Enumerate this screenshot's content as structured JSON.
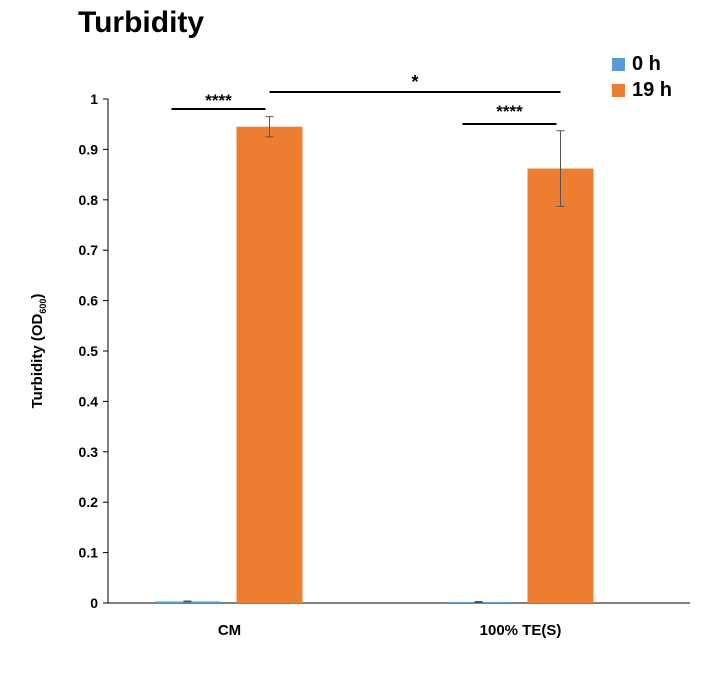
{
  "chart_data": {
    "type": "bar",
    "title": "Turbidity",
    "xlabel": "",
    "ylabel": "Turbidity (OD",
    "ylabel_subscript": "600",
    "ylabel_close": ")",
    "categories": [
      "CM",
      "100%  TE(S)"
    ],
    "series": [
      {
        "name": "0 h",
        "color": "#5B9BD5",
        "values": [
          0.003,
          0.002
        ],
        "errors": [
          0.001,
          0.001
        ]
      },
      {
        "name": "19 h",
        "color": "#ED7D31",
        "values": [
          0.945,
          0.862
        ],
        "errors": [
          0.02,
          0.075
        ]
      }
    ],
    "ylim": [
      0,
      1
    ],
    "yticks": [
      0,
      0.1,
      0.2,
      0.3,
      0.4,
      0.5,
      0.6,
      0.7,
      0.8,
      0.9,
      1
    ],
    "ytick_labels": [
      "0",
      "0.1",
      "0.2",
      "0.3",
      "0.4",
      "0.5",
      "0.6",
      "0.7",
      "0.8",
      "0.9",
      "1"
    ],
    "grid": false,
    "legend_position": "top-right",
    "significance": [
      {
        "label": "****",
        "between": "CM 0 h vs CM 19 h"
      },
      {
        "label": "****",
        "between": "100%  TE(S) 0 h vs 100%  TE(S) 19 h"
      },
      {
        "label": "*",
        "between": "CM 19 h vs 100%  TE(S) 19 h"
      }
    ]
  }
}
